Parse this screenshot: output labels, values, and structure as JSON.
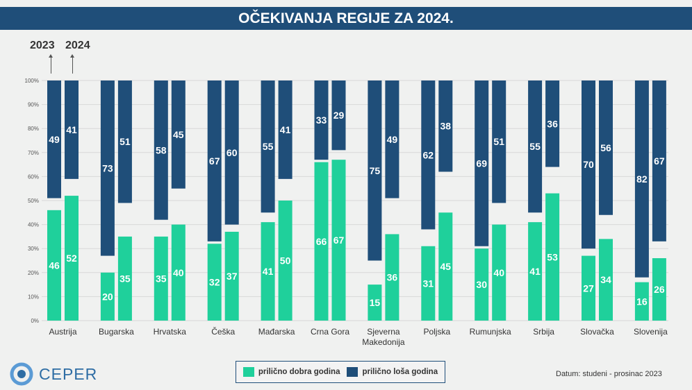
{
  "chart_data": {
    "type": "bar",
    "title": "OČEKIVANJA REGIJE ZA 2024.",
    "year_labels": [
      "2023",
      "2024"
    ],
    "categories": [
      "Austrija",
      "Bugarska",
      "Hrvatska",
      "Češka",
      "Mađarska",
      "Crna Gora",
      "Sjeverna Makedonija",
      "Poljska",
      "Rumunjska",
      "Srbija",
      "Slovačka",
      "Slovenija"
    ],
    "series": [
      {
        "name": "prilično dobra godina",
        "color": "#1fd09b",
        "values_2023": [
          46,
          20,
          35,
          32,
          41,
          66,
          15,
          31,
          30,
          41,
          27,
          16
        ],
        "values_2024": [
          52,
          35,
          40,
          37,
          50,
          67,
          36,
          45,
          40,
          53,
          34,
          26
        ]
      },
      {
        "name": "prilično loša godina",
        "color": "#1f4e79",
        "values_2023": [
          49,
          73,
          58,
          67,
          55,
          33,
          75,
          62,
          69,
          55,
          70,
          82
        ],
        "values_2024": [
          41,
          51,
          45,
          60,
          41,
          29,
          49,
          38,
          51,
          36,
          56,
          67
        ]
      }
    ],
    "yticks": [
      "0%",
      "10%",
      "20%",
      "30%",
      "40%",
      "50%",
      "60%",
      "70%",
      "80%",
      "90%",
      "100%"
    ],
    "ylim": [
      0,
      100
    ],
    "grid": true,
    "legend_position": "bottom"
  },
  "footer": {
    "logo": "CEPER",
    "date": "Datum: studeni - prosinac 2023"
  }
}
